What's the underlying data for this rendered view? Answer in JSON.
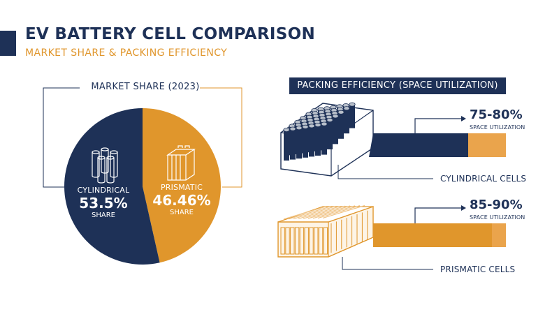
{
  "header": {
    "title": "EV BATTERY CELL COMPARISON",
    "subtitle": "MARKET SHARE & PACKING EFFICIENCY"
  },
  "colors": {
    "navy": "#1e3157",
    "orange": "#e0962c",
    "light_orange": "#eaa44c"
  },
  "chart_data": [
    {
      "type": "pie",
      "title": "MARKET SHARE (2023)",
      "slices": [
        {
          "name": "CYLINDRICAL",
          "value": 53.5,
          "value_label": "53.5%",
          "share_label": "SHARE",
          "color": "#1e3157",
          "icon": "cylindrical-cells-icon"
        },
        {
          "name": "PRISMATIC",
          "value": 46.46,
          "value_label": "46.46%",
          "share_label": "SHARE",
          "color": "#e0962c",
          "icon": "prismatic-cell-icon"
        }
      ]
    },
    {
      "type": "bar",
      "title": "PACKING EFFICIENCY (SPACE UTILIZATION)",
      "series": [
        {
          "category": "CYLINDRICAL CELLS",
          "range": [
            75,
            80
          ],
          "value_label": "75-80%",
          "caption": "SPACE UTILIZATION",
          "color": "#1e3157",
          "icon": "cylindrical-battery-pack-icon"
        },
        {
          "category": "PRISMATIC CELLS",
          "range": [
            85,
            90
          ],
          "value_label": "85-90%",
          "caption": "SPACE UTILIZATION",
          "color": "#e0962c",
          "icon": "prismatic-battery-pack-icon"
        }
      ]
    }
  ]
}
